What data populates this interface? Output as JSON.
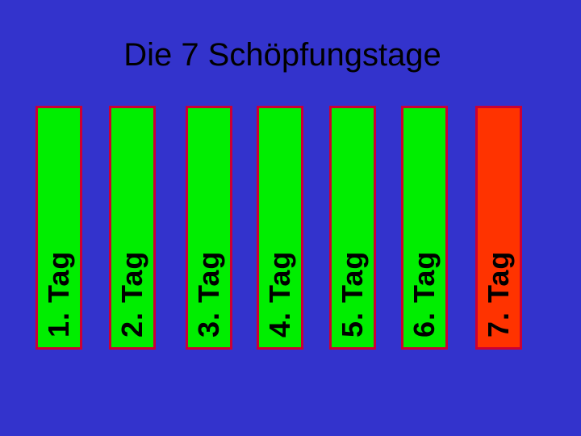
{
  "slide": {
    "title": "Die 7 Schöpfungstage",
    "background_color": "#3333cc",
    "days": [
      {
        "label": "1. Tag",
        "color": "#00ee00"
      },
      {
        "label": "2. Tag",
        "color": "#00ee00"
      },
      {
        "label": "3. Tag",
        "color": "#00ee00"
      },
      {
        "label": "4. Tag",
        "color": "#00ee00"
      },
      {
        "label": "5. Tag",
        "color": "#00ee00"
      },
      {
        "label": "6. Tag",
        "color": "#00ee00"
      },
      {
        "label": "7. Tag",
        "color": "#ff3300"
      }
    ]
  }
}
